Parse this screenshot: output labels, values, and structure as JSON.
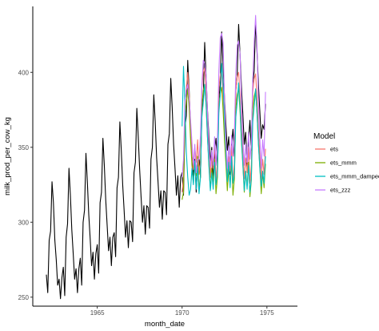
{
  "chart_data": {
    "type": "line",
    "xlabel": "month_date",
    "ylabel": "milk_prod_per_cow_kg",
    "xlim": [
      1961.2,
      1976.8
    ],
    "ylim": [
      244,
      444
    ],
    "x_ticks": [
      1965,
      1970,
      1975
    ],
    "x_tick_labels": [
      "1965",
      "1970",
      "1975"
    ],
    "y_ticks": [
      250,
      300,
      350,
      400
    ],
    "y_tick_labels": [
      "250",
      "300",
      "350",
      "400"
    ],
    "grid": false,
    "legend": {
      "title": "Model",
      "position": "right",
      "entries": [
        {
          "label": "ets",
          "color": "#F8766D"
        },
        {
          "label": "ets_mmm",
          "color": "#7CAE00"
        },
        {
          "label": "ets_mmm_damped",
          "color": "#00BFC4"
        },
        {
          "label": "ets_zzz",
          "color": "#C77CFF"
        }
      ]
    },
    "series": [
      {
        "color": "#000000",
        "x_start": 1962.0,
        "step": 0.08333,
        "values": [
          265,
          253,
          288,
          294,
          327,
          313,
          288,
          275,
          258,
          262,
          249,
          263,
          270,
          251,
          290,
          299,
          336,
          318,
          295,
          279,
          262,
          269,
          253,
          269,
          276,
          258,
          300,
          308,
          346,
          327,
          305,
          289,
          271,
          280,
          262,
          279,
          285,
          266,
          313,
          320,
          356,
          338,
          315,
          298,
          281,
          290,
          271,
          290,
          293,
          277,
          323,
          330,
          367,
          348,
          325,
          308,
          290,
          301,
          283,
          301,
          300,
          287,
          333,
          340,
          376,
          357,
          335,
          317,
          300,
          311,
          292,
          311,
          310,
          296,
          342,
          350,
          385,
          367,
          343,
          327,
          310,
          321,
          302,
          321,
          320,
          305,
          352,
          359,
          396,
          377,
          352,
          336,
          318,
          331,
          310,
          330,
          333,
          318,
          363,
          371,
          408,
          388,
          364,
          348,
          330,
          342,
          320,
          340,
          343,
          330,
          373,
          383,
          420,
          397,
          374,
          357,
          340,
          350,
          327,
          348,
          356,
          339,
          382,
          392,
          427,
          405,
          383,
          365,
          348,
          357,
          332,
          352,
          362,
          344,
          388,
          398,
          432,
          412,
          390,
          372,
          352,
          360,
          337,
          355,
          368,
          348,
          392,
          401,
          434,
          414,
          392,
          374,
          356,
          365,
          362,
          379
        ]
      },
      {
        "name": "ets",
        "color": "#F8766D",
        "x_start": 1970.0,
        "step": 0.08333,
        "values": [
          320,
          329,
          378,
          390,
          400,
          386,
          365,
          347,
          335,
          350,
          340,
          355,
          332,
          341,
          390,
          400,
          403,
          388,
          365,
          348,
          330,
          345,
          336,
          352,
          328,
          340,
          389,
          398,
          401,
          385,
          364,
          348,
          330,
          344,
          334,
          351,
          327,
          339,
          388,
          397,
          400,
          384,
          363,
          347,
          329,
          343,
          333,
          350,
          326,
          338,
          387,
          396,
          399,
          383,
          362,
          346,
          328,
          342,
          332,
          349
        ]
      },
      {
        "name": "ets_mmm",
        "color": "#7CAE00",
        "x_start": 1970.0,
        "step": 0.08333,
        "values": [
          315,
          320,
          370,
          380,
          389,
          376,
          355,
          338,
          326,
          340,
          331,
          344,
          322,
          330,
          378,
          388,
          392,
          378,
          356,
          339,
          322,
          336,
          327,
          342,
          319,
          330,
          377,
          386,
          390,
          375,
          355,
          339,
          321,
          335,
          325,
          341,
          318,
          329,
          376,
          385,
          389,
          374,
          354,
          338,
          320,
          334,
          324,
          340,
          317,
          328,
          375,
          384,
          388,
          373,
          353,
          337,
          319,
          333,
          323,
          339
        ]
      },
      {
        "name": "ets_mmm_damped",
        "color": "#00BFC4",
        "x_start": 1970.0,
        "step": 0.08333,
        "values": [
          364,
          404,
          380,
          347,
          330,
          318,
          322,
          336,
          325,
          341,
          322,
          337,
          319,
          330,
          370,
          380,
          392,
          378,
          356,
          337,
          321,
          333,
          322,
          340,
          325,
          333,
          373,
          385,
          406,
          392,
          369,
          347,
          327,
          340,
          323,
          344,
          326,
          332,
          370,
          380,
          393,
          377,
          355,
          339,
          321,
          334,
          322,
          338,
          320,
          329,
          367,
          377,
          389,
          373,
          352,
          336,
          324,
          334,
          326,
          344
        ]
      },
      {
        "name": "ets_zzz",
        "color": "#C77CFF",
        "x_start": 1970.0,
        "step": 0.08333,
        "values": [
          330,
          342,
          380,
          388,
          392,
          383,
          368,
          353,
          338,
          352,
          333,
          342,
          342,
          358,
          392,
          408,
          406,
          398,
          373,
          350,
          337,
          348,
          338,
          357,
          338,
          355,
          401,
          423,
          426,
          420,
          382,
          354,
          336,
          351,
          338,
          358,
          344,
          359,
          400,
          418,
          421,
          412,
          380,
          355,
          338,
          352,
          340,
          360,
          342,
          352,
          396,
          420,
          438,
          418,
          380,
          356,
          336,
          355,
          344,
          387
        ]
      }
    ]
  }
}
